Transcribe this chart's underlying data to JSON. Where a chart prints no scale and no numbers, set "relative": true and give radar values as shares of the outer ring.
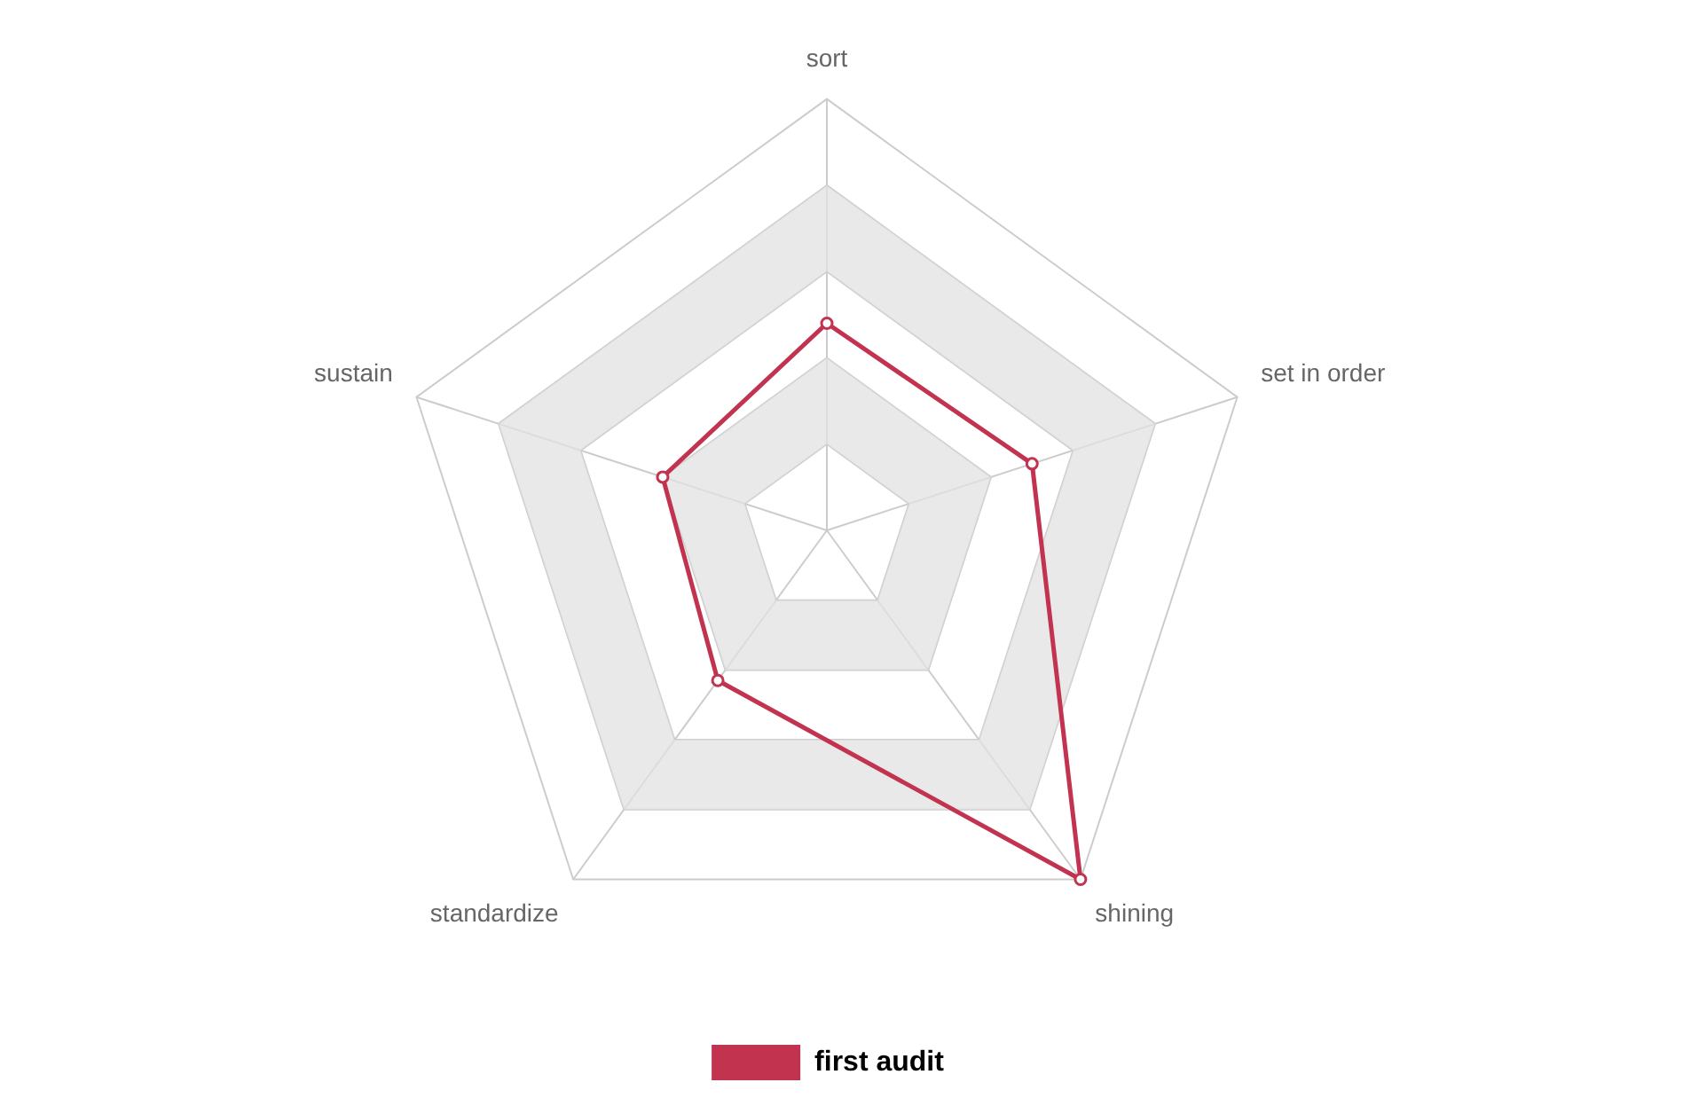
{
  "chart_data": {
    "type": "radar",
    "relative": true,
    "categories": [
      "sort",
      "set in order",
      "shining",
      "standardize",
      "sustain"
    ],
    "series": [
      {
        "name": "first audit",
        "color": "#c23350",
        "values": [
          0.48,
          0.5,
          1,
          0.43,
          0.4
        ]
      }
    ],
    "legend": "bottom",
    "marker": "circle",
    "grid": true
  }
}
